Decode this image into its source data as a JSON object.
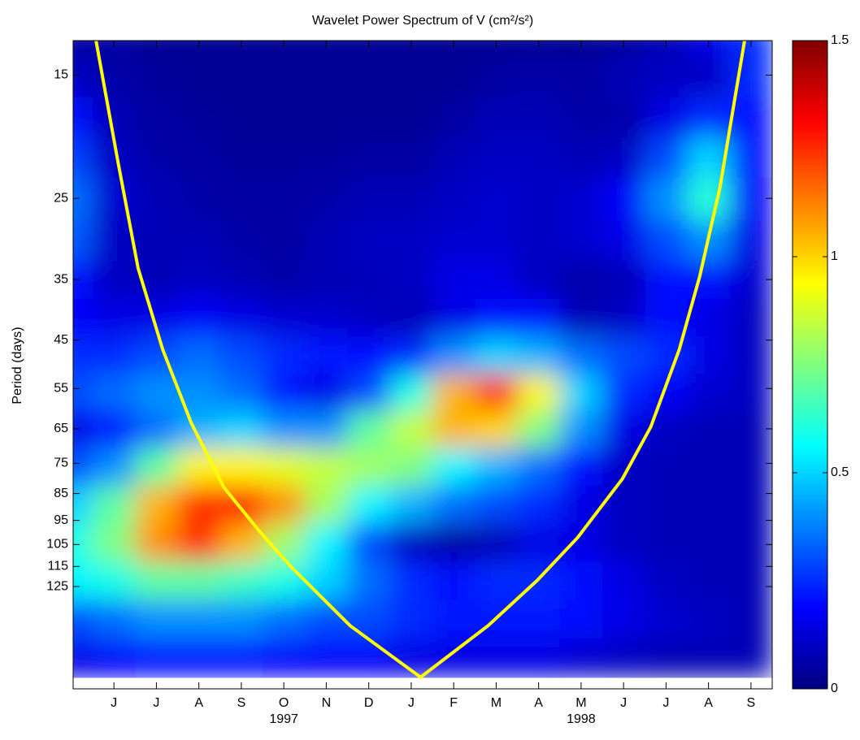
{
  "chart_data": {
    "type": "heatmap",
    "title": "Wavelet Power Spectrum of V (cm²/s²)",
    "y_label": "Period (days)",
    "colormap": "jet",
    "xlim": [
      -0.96,
      15.5
    ],
    "xticks": [
      {
        "value": 0,
        "label": "J"
      },
      {
        "value": 1,
        "label": "J"
      },
      {
        "value": 2,
        "label": "A"
      },
      {
        "value": 3,
        "label": "S"
      },
      {
        "value": 4,
        "label": "O"
      },
      {
        "value": 5,
        "label": "N"
      },
      {
        "value": 6,
        "label": "D"
      },
      {
        "value": 7,
        "label": "J"
      },
      {
        "value": 8,
        "label": "F"
      },
      {
        "value": 9,
        "label": "M"
      },
      {
        "value": 10,
        "label": "A"
      },
      {
        "value": 11,
        "label": "M"
      },
      {
        "value": 12,
        "label": "J"
      },
      {
        "value": 13,
        "label": "J"
      },
      {
        "value": 14,
        "label": "A"
      },
      {
        "value": 15,
        "label": "S"
      }
    ],
    "annotations": [
      {
        "x": 4,
        "text": "1997"
      },
      {
        "x": 11,
        "text": "1998"
      }
    ],
    "ylim": [
      13,
      191
    ],
    "y_log": true,
    "y_reversed": true,
    "yticks": [
      15,
      25,
      35,
      45,
      55,
      65,
      75,
      85,
      95,
      105,
      115,
      125
    ],
    "x": [
      -1,
      0,
      1,
      2,
      3,
      4,
      5,
      6,
      7,
      8,
      9,
      10,
      11,
      12,
      13,
      14,
      15
    ],
    "y": [
      13,
      15,
      18,
      21,
      25,
      30,
      35,
      41,
      48,
      56,
      65,
      76,
      89,
      104,
      122,
      143,
      168
    ],
    "z": [
      [
        0.05,
        0.05,
        0.03,
        0.03,
        0.03,
        0.03,
        0.03,
        0.03,
        0.03,
        0.03,
        0.03,
        0.03,
        0.03,
        0.05,
        0.08,
        0.15,
        0.25
      ],
      [
        0.1,
        0.06,
        0.04,
        0.03,
        0.03,
        0.03,
        0.03,
        0.03,
        0.03,
        0.03,
        0.05,
        0.06,
        0.05,
        0.08,
        0.1,
        0.1,
        0.25
      ],
      [
        0.2,
        0.08,
        0.05,
        0.04,
        0.03,
        0.03,
        0.03,
        0.03,
        0.03,
        0.05,
        0.08,
        0.08,
        0.06,
        0.06,
        0.15,
        0.25,
        0.2
      ],
      [
        0.28,
        0.1,
        0.06,
        0.05,
        0.04,
        0.04,
        0.04,
        0.05,
        0.05,
        0.08,
        0.1,
        0.1,
        0.08,
        0.1,
        0.3,
        0.5,
        0.2
      ],
      [
        0.35,
        0.12,
        0.08,
        0.06,
        0.05,
        0.05,
        0.06,
        0.08,
        0.08,
        0.1,
        0.12,
        0.1,
        0.12,
        0.18,
        0.4,
        0.62,
        0.18
      ],
      [
        0.32,
        0.1,
        0.08,
        0.08,
        0.06,
        0.05,
        0.08,
        0.1,
        0.1,
        0.12,
        0.12,
        0.1,
        0.12,
        0.15,
        0.3,
        0.4,
        0.15
      ],
      [
        0.2,
        0.1,
        0.08,
        0.1,
        0.08,
        0.06,
        0.08,
        0.08,
        0.1,
        0.15,
        0.15,
        0.1,
        0.06,
        0.08,
        0.2,
        0.2,
        0.12
      ],
      [
        0.18,
        0.15,
        0.15,
        0.18,
        0.15,
        0.12,
        0.12,
        0.1,
        0.08,
        0.15,
        0.2,
        0.2,
        0.08,
        0.1,
        0.2,
        0.15,
        0.1
      ],
      [
        0.25,
        0.25,
        0.3,
        0.35,
        0.3,
        0.25,
        0.22,
        0.2,
        0.25,
        0.4,
        0.5,
        0.45,
        0.35,
        0.3,
        0.25,
        0.15,
        0.1
      ],
      [
        0.3,
        0.35,
        0.4,
        0.4,
        0.35,
        0.22,
        0.15,
        0.3,
        0.6,
        1.05,
        1.25,
        0.95,
        0.5,
        0.25,
        0.18,
        0.12,
        0.1
      ],
      [
        0.15,
        0.2,
        0.35,
        0.45,
        0.5,
        0.4,
        0.4,
        0.7,
        0.85,
        1.05,
        1.0,
        0.75,
        0.4,
        0.15,
        0.1,
        0.08,
        0.08
      ],
      [
        0.3,
        0.4,
        0.7,
        0.95,
        0.95,
        0.9,
        0.85,
        0.8,
        0.75,
        0.55,
        0.45,
        0.35,
        0.2,
        0.1,
        0.08,
        0.08,
        0.08
      ],
      [
        0.5,
        0.7,
        1.05,
        1.25,
        1.3,
        1.1,
        0.8,
        0.55,
        0.45,
        0.35,
        0.3,
        0.25,
        0.15,
        0.1,
        0.08,
        0.08,
        0.08
      ],
      [
        0.6,
        0.75,
        1.1,
        1.25,
        1.05,
        0.8,
        0.55,
        0.3,
        0.1,
        0.05,
        0.08,
        0.15,
        0.15,
        0.1,
        0.08,
        0.08,
        0.08
      ],
      [
        0.55,
        0.6,
        0.7,
        0.7,
        0.65,
        0.6,
        0.5,
        0.35,
        0.25,
        0.2,
        0.25,
        0.25,
        0.2,
        0.15,
        0.1,
        0.08,
        0.08
      ],
      [
        0.3,
        0.35,
        0.4,
        0.4,
        0.4,
        0.35,
        0.3,
        0.3,
        0.25,
        0.22,
        0.22,
        0.22,
        0.2,
        0.15,
        0.12,
        0.1,
        0.08
      ],
      [
        0.15,
        0.18,
        0.2,
        0.2,
        0.2,
        0.18,
        0.18,
        0.18,
        0.15,
        0.15,
        0.15,
        0.15,
        0.12,
        0.1,
        0.08,
        0.08,
        0.08
      ]
    ],
    "clim": [
      0,
      1.5
    ],
    "cticks": [
      0,
      0.5,
      1,
      1.5
    ],
    "coi": {
      "color": "#ffff00",
      "x": [
        -0.42,
        0.1,
        0.57,
        1.15,
        1.82,
        2.59,
        3.45,
        4.21,
        5.56,
        7.22,
        8.81,
        9.96,
        10.92,
        11.97,
        12.64,
        13.31,
        13.79,
        14.27,
        14.85
      ],
      "y": [
        13.02,
        21.6,
        33.4,
        46.8,
        63.4,
        82.9,
        99.9,
        116,
        147,
        182,
        147,
        122,
        102,
        80,
        64.5,
        46.8,
        34.6,
        23.9,
        13.0
      ]
    }
  }
}
